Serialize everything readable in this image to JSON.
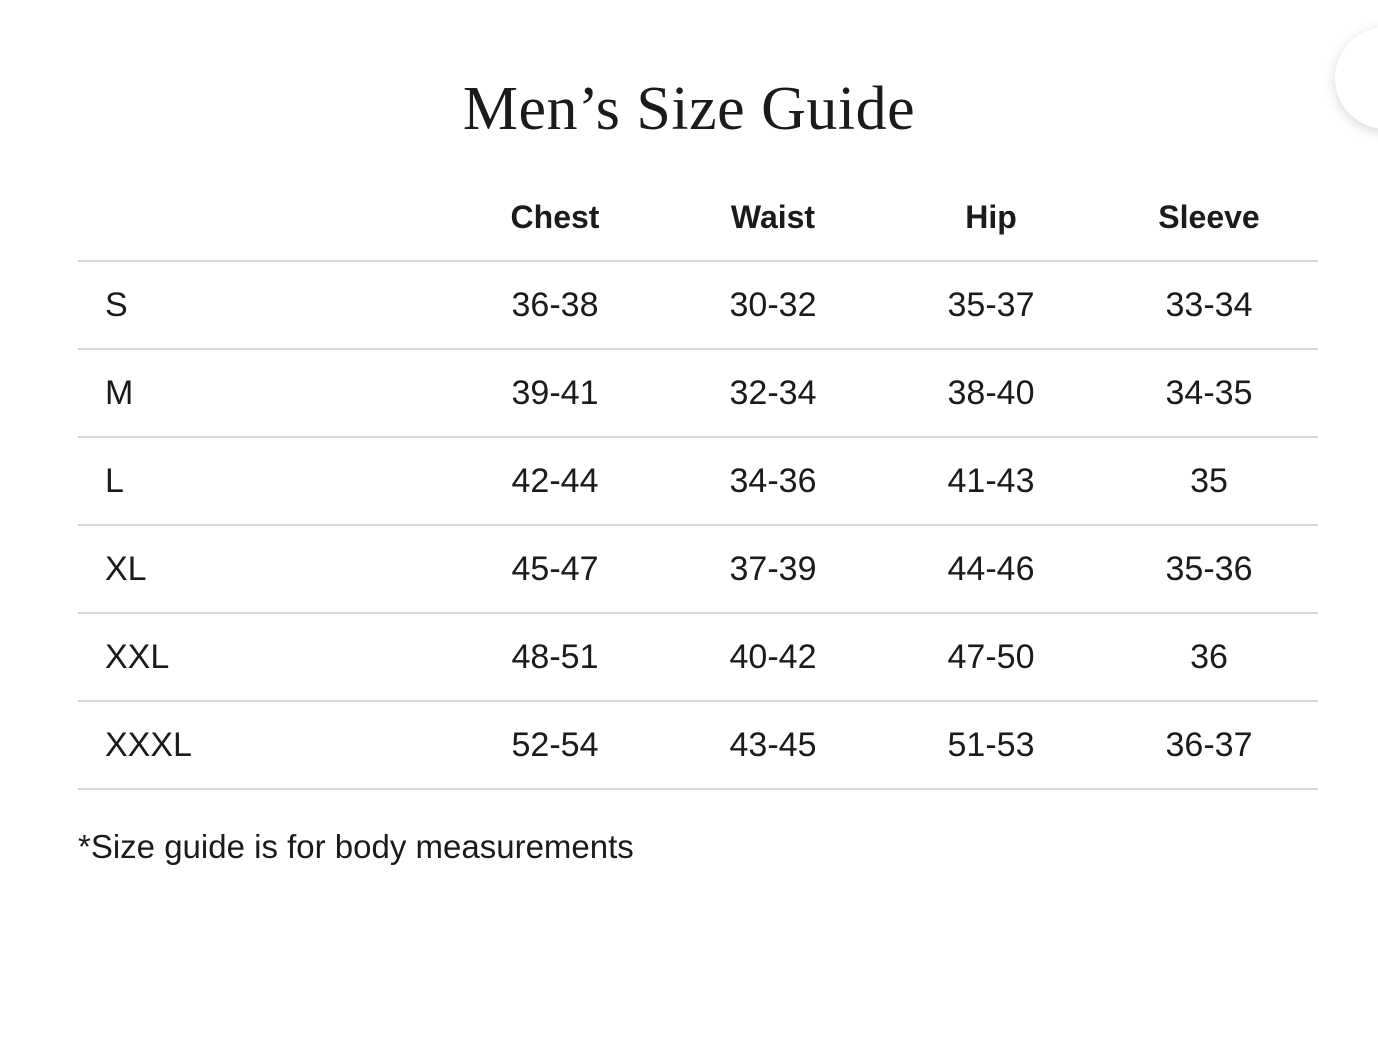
{
  "theme": {
    "background": "#ffffff",
    "text_color": "#1b1b1b",
    "divider_color": "#d6d6d6"
  },
  "title": "Men’s Size Guide",
  "size_table": {
    "columns": [
      "Chest",
      "Waist",
      "Hip",
      "Sleeve"
    ],
    "rows": [
      {
        "label": "S",
        "cells": [
          "36-38",
          "30-32",
          "35-37",
          "33-34"
        ]
      },
      {
        "label": "M",
        "cells": [
          "39-41",
          "32-34",
          "38-40",
          "34-35"
        ]
      },
      {
        "label": "L",
        "cells": [
          "42-44",
          "34-36",
          "41-43",
          "35"
        ]
      },
      {
        "label": "XL",
        "cells": [
          "45-47",
          "37-39",
          "44-46",
          "35-36"
        ]
      },
      {
        "label": "XXL",
        "cells": [
          "48-51",
          "40-42",
          "47-50",
          "36"
        ]
      },
      {
        "label": "XXXL",
        "cells": [
          "52-54",
          "43-45",
          "51-53",
          "36-37"
        ]
      }
    ]
  },
  "footnote": "*Size guide is for body measurements"
}
